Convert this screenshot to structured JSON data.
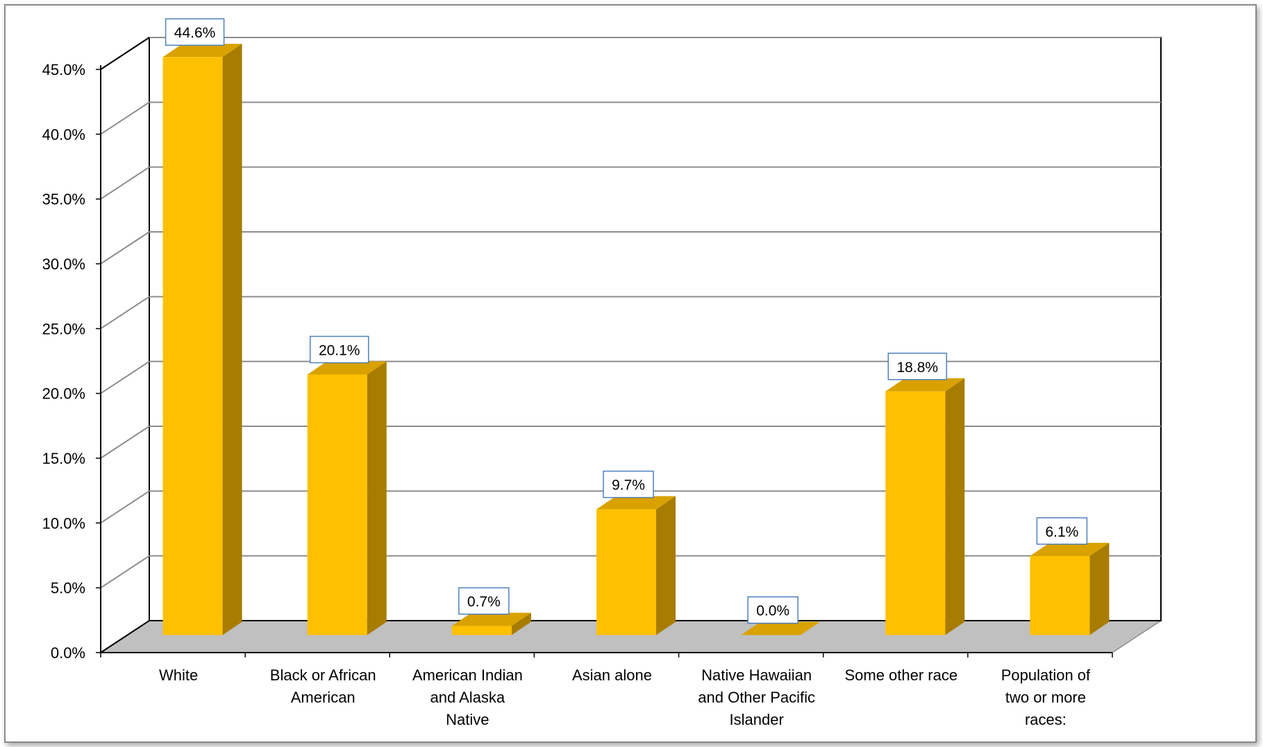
{
  "chart_data": {
    "type": "bar",
    "style": "3d-column",
    "categories": [
      [
        "White"
      ],
      [
        "Black or African",
        "American"
      ],
      [
        "American Indian",
        "and Alaska",
        "Native"
      ],
      [
        "Asian alone"
      ],
      [
        "Native Hawaiian",
        "and Other Pacific",
        "Islander"
      ],
      [
        "Some other race"
      ],
      [
        "Population of",
        "two or more",
        "races:"
      ]
    ],
    "values": [
      44.6,
      20.1,
      0.7,
      9.7,
      0.0,
      18.8,
      6.1
    ],
    "data_labels": [
      "44.6%",
      "20.1%",
      "0.7%",
      "9.7%",
      "0.0%",
      "18.8%",
      "6.1%"
    ],
    "y_ticks": [
      "0.0%",
      "5.0%",
      "10.0%",
      "15.0%",
      "20.0%",
      "25.0%",
      "30.0%",
      "35.0%",
      "40.0%",
      "45.0%"
    ],
    "ylim": [
      0,
      45
    ],
    "grid": true,
    "legend": false,
    "colors": {
      "bar_front": "#FFC000",
      "bar_side": "#A87C00",
      "bar_top": "#D9A200",
      "floor": "#C0C0C0",
      "gridline": "#8C8C8C",
      "label_border": "#4F81BD"
    }
  }
}
